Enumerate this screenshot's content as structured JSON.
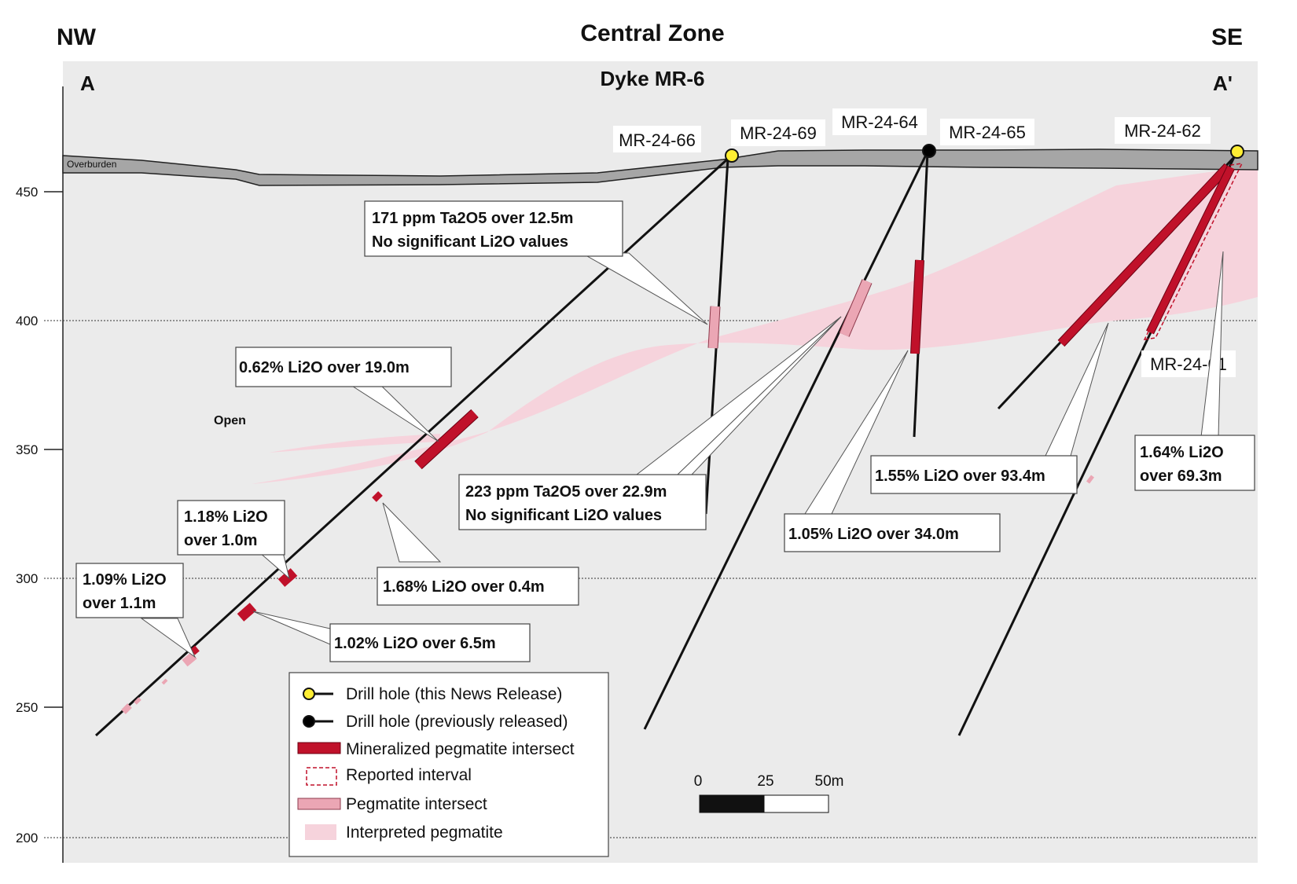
{
  "header": {
    "left_dir": "NW",
    "title": "Central Zone",
    "right_dir": "SE",
    "section_start": "A",
    "section_end": "A'",
    "subtitle": "Dyke MR-6"
  },
  "axis": {
    "elevation_ticks": [
      "450",
      "400",
      "350",
      "300",
      "250",
      "200"
    ]
  },
  "overburden_label": "Overburden",
  "open_label": "Open",
  "drill_holes": {
    "mr_24_66": "MR-24-66",
    "mr_24_69": "MR-24-69",
    "mr_24_64": "MR-24-64",
    "mr_24_65": "MR-24-65",
    "mr_24_62": "MR-24-62",
    "mr_24_61": "MR-24-61"
  },
  "callouts": {
    "ta_12_5_line1": "171 ppm Ta2O5 over 12.5m",
    "ta_12_5_line2": "No significant Li2O values",
    "li_19_0": "0.62% Li2O over 19.0m",
    "ta_22_9_line1": "223 ppm Ta2O5 over 22.9m",
    "ta_22_9_line2": "No significant Li2O values",
    "li_1_18_line1": "1.18% Li2O",
    "li_1_18_line2": "over 1.0m",
    "li_1_09_line1": "1.09% Li2O",
    "li_1_09_line2": "over 1.1m",
    "li_1_68": "1.68% Li2O over 0.4m",
    "li_1_02": "1.02% Li2O over 6.5m",
    "li_1_05": "1.05% Li2O over 34.0m",
    "li_1_55": "1.55% Li2O over 93.4m",
    "li_1_64_line1": "1.64% Li2O",
    "li_1_64_line2": "over 69.3m"
  },
  "legend": {
    "items": [
      "Drill hole (this News Release)",
      "Drill hole (previously released)",
      "Mineralized pegmatite intersect",
      "Reported interval",
      "Pegmatite intersect",
      "Interpreted pegmatite"
    ]
  },
  "scale_bar": {
    "ticks": [
      "0",
      "25",
      "50m"
    ]
  },
  "colors": {
    "panel": "#ebebeb",
    "overburden": "#a6a6a6",
    "interpreted_pegmatite": "#f6d3dc",
    "mineralized": "#c0112a",
    "pegmatite": "#eba6b4",
    "new_hole_marker": "#ffee33",
    "old_hole_marker": "#000000"
  }
}
